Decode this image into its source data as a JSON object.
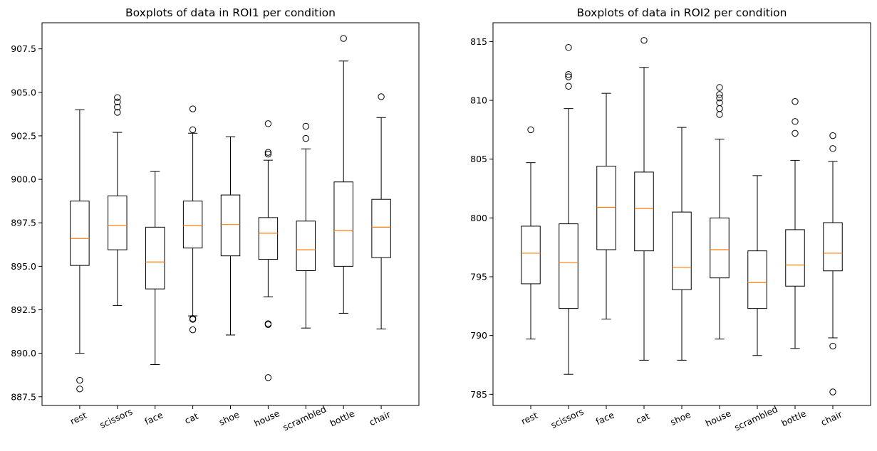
{
  "chart_data": [
    {
      "type": "box",
      "title": "Boxplots of data in ROI1 per condition",
      "xlabel": "",
      "ylabel": "",
      "categories": [
        "rest",
        "scissors",
        "face",
        "cat",
        "shoe",
        "house",
        "scrambled",
        "bottle",
        "chair"
      ],
      "ylim": [
        887.0,
        909.0
      ],
      "yticks": [
        887.5,
        890.0,
        892.5,
        895.0,
        897.5,
        900.0,
        902.5,
        905.0,
        907.5
      ],
      "ytick_labels": [
        "887.5",
        "890.0",
        "892.5",
        "895.0",
        "897.5",
        "900.0",
        "902.5",
        "905.0",
        "907.5"
      ],
      "boxes": [
        {
          "whislo": 890.0,
          "q1": 895.05,
          "med": 896.6,
          "q3": 898.75,
          "whishi": 904.0,
          "fliers": [
            888.45,
            887.95
          ]
        },
        {
          "whislo": 892.75,
          "q1": 895.95,
          "med": 897.35,
          "q3": 899.05,
          "whishi": 902.7,
          "fliers": [
            904.7,
            904.45,
            904.15,
            903.85
          ]
        },
        {
          "whislo": 889.35,
          "q1": 893.7,
          "med": 895.25,
          "q3": 897.25,
          "whishi": 900.45,
          "fliers": []
        },
        {
          "whislo": 892.15,
          "q1": 896.05,
          "med": 897.35,
          "q3": 898.75,
          "whishi": 902.65,
          "fliers": [
            904.05,
            902.85,
            892.0,
            891.95,
            891.35
          ]
        },
        {
          "whislo": 891.05,
          "q1": 895.6,
          "med": 897.4,
          "q3": 899.1,
          "whishi": 902.45,
          "fliers": []
        },
        {
          "whislo": 893.25,
          "q1": 895.4,
          "med": 896.9,
          "q3": 897.8,
          "whishi": 901.1,
          "fliers": [
            903.2,
            901.55,
            901.45,
            891.7,
            891.65,
            888.6
          ]
        },
        {
          "whislo": 891.45,
          "q1": 894.75,
          "med": 895.95,
          "q3": 897.6,
          "whishi": 901.75,
          "fliers": [
            903.05,
            902.35
          ]
        },
        {
          "whislo": 892.3,
          "q1": 895.0,
          "med": 897.05,
          "q3": 899.85,
          "whishi": 906.8,
          "fliers": [
            908.1
          ]
        },
        {
          "whislo": 891.4,
          "q1": 895.5,
          "med": 897.25,
          "q3": 898.85,
          "whishi": 903.55,
          "fliers": [
            904.75
          ]
        }
      ]
    },
    {
      "type": "box",
      "title": "Boxplots of data in ROI2 per condition",
      "xlabel": "",
      "ylabel": "",
      "categories": [
        "rest",
        "scissors",
        "face",
        "cat",
        "shoe",
        "house",
        "scrambled",
        "bottle",
        "chair"
      ],
      "ylim": [
        784.05,
        816.6
      ],
      "yticks": [
        785,
        790,
        795,
        800,
        805,
        810,
        815
      ],
      "ytick_labels": [
        "785",
        "790",
        "795",
        "800",
        "805",
        "810",
        "815"
      ],
      "boxes": [
        {
          "whislo": 789.7,
          "q1": 794.4,
          "med": 797.0,
          "q3": 799.3,
          "whishi": 804.7,
          "fliers": [
            807.5
          ]
        },
        {
          "whislo": 786.7,
          "q1": 792.3,
          "med": 796.2,
          "q3": 799.5,
          "whishi": 809.3,
          "fliers": [
            814.5,
            812.2,
            812.0,
            811.2
          ]
        },
        {
          "whislo": 791.4,
          "q1": 797.3,
          "med": 800.9,
          "q3": 804.4,
          "whishi": 810.6,
          "fliers": []
        },
        {
          "whislo": 787.9,
          "q1": 797.2,
          "med": 800.8,
          "q3": 803.9,
          "whishi": 812.8,
          "fliers": [
            815.1
          ]
        },
        {
          "whislo": 787.9,
          "q1": 793.9,
          "med": 795.8,
          "q3": 800.5,
          "whishi": 807.7,
          "fliers": []
        },
        {
          "whislo": 789.7,
          "q1": 794.9,
          "med": 797.3,
          "q3": 800.0,
          "whishi": 806.7,
          "fliers": [
            811.1,
            810.5,
            810.2,
            809.8,
            809.3,
            808.8
          ]
        },
        {
          "whislo": 788.3,
          "q1": 792.3,
          "med": 794.5,
          "q3": 797.2,
          "whishi": 803.6,
          "fliers": []
        },
        {
          "whislo": 788.9,
          "q1": 794.2,
          "med": 796.0,
          "q3": 799.0,
          "whishi": 804.9,
          "fliers": [
            809.9,
            808.2,
            807.2
          ]
        },
        {
          "whislo": 789.8,
          "q1": 795.5,
          "med": 797.0,
          "q3": 799.6,
          "whishi": 804.8,
          "fliers": [
            807.0,
            805.9,
            789.1,
            785.2
          ]
        }
      ]
    }
  ],
  "style": {
    "box_color": "#000000",
    "median_color": "#ff7f0e",
    "flier_color": "#000000",
    "background": "#ffffff"
  }
}
